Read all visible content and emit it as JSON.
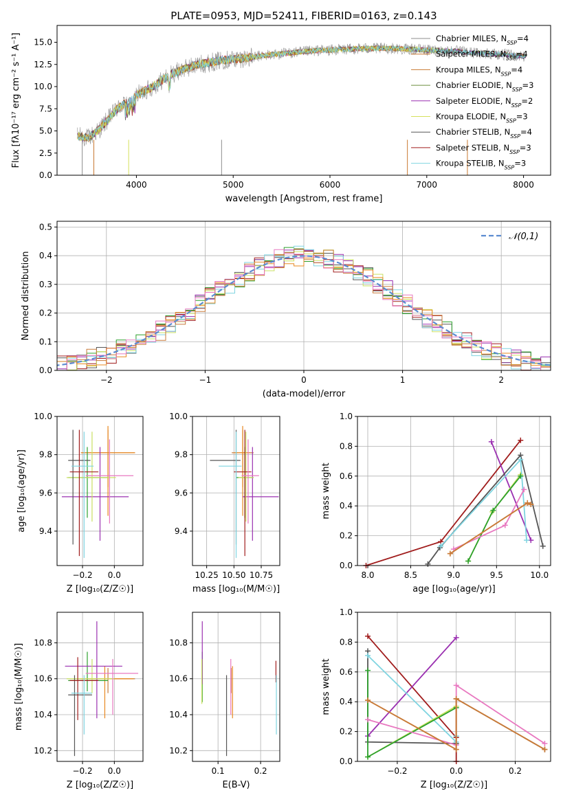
{
  "colors": [
    "#1f77b4",
    "#e88820",
    "#c77a3a",
    "#2ca02c",
    "#9a2fb0",
    "#c9e060",
    "#555555",
    "#a01c1c",
    "#7fd4e0",
    "#e878c0"
  ],
  "spectrum_series_colors": [
    "#8c8c8c",
    "#c87830",
    "#c87830",
    "#6b8e3e",
    "#9a2fb0",
    "#d4e05a",
    "#555555",
    "#a01c1c",
    "#7fd4e0"
  ],
  "chart_data": [
    {
      "id": "spectrum",
      "type": "line",
      "title": "PLATE=0953, MJD=52411, FIBERID=0163, z=0.143",
      "xlabel": "wavelength [Angstrom, rest frame]",
      "ylabel": "Flux [fλ10⁻¹⁷ erg cm⁻² s⁻¹ A⁻¹]",
      "xlim": [
        3180,
        8280
      ],
      "ylim": [
        0,
        16.9
      ],
      "xticks": [
        4000,
        5000,
        6000,
        7000,
        8000
      ],
      "yticks": [
        0.0,
        2.5,
        5.0,
        7.5,
        10.0,
        12.5,
        15.0
      ],
      "legend_position": "right",
      "legend": [
        "Chabrier MILES, N_SSP=4",
        "Salpeter MILES, N_SSP=4",
        "Kroupa MILES, N_SSP=4",
        "Chabrier ELODIE, N_SSP=3",
        "Salpeter ELODIE, N_SSP=2",
        "Kroupa ELODIE, N_SSP=3",
        "Chabrier STELIB, N_SSP=4",
        "Salpeter STELIB, N_SSP=3",
        "Kroupa STELIB, N_SSP=3"
      ],
      "continuum": {
        "x": [
          3400,
          3500,
          3600,
          3700,
          3800,
          3900,
          4000,
          4100,
          4200,
          4300,
          4400,
          4500,
          4600,
          4700,
          4800,
          4900,
          5000,
          5100,
          5200,
          5300,
          5400,
          5500,
          5600,
          5700,
          5800,
          5900,
          6000,
          6100,
          6200,
          6300,
          6400,
          6500,
          6600,
          6700,
          6800,
          6900,
          7000,
          7100,
          7200,
          7300,
          7400,
          7500,
          7600,
          7700,
          7800,
          7900,
          8000
        ],
        "y": [
          4.4,
          4.2,
          5.0,
          6.2,
          7.5,
          8.2,
          9.0,
          9.6,
          10.2,
          11.0,
          11.6,
          12.0,
          12.4,
          12.6,
          12.8,
          13.0,
          13.1,
          13.2,
          13.3,
          13.5,
          13.6,
          13.7,
          13.8,
          13.9,
          14.0,
          14.1,
          14.1,
          14.2,
          14.2,
          14.3,
          14.3,
          14.3,
          14.3,
          14.3,
          14.2,
          14.2,
          14.1,
          14.1,
          14.0,
          14.0,
          13.9,
          13.8,
          13.8,
          13.7,
          13.6,
          13.5,
          13.4
        ]
      }
    },
    {
      "id": "residuals",
      "type": "histogram",
      "xlabel": "(data-model)/error",
      "ylabel": "Normed distribution",
      "xlim": [
        -2.5,
        2.5
      ],
      "ylim": [
        0,
        0.52
      ],
      "xticks": [
        -2,
        -1,
        0,
        1,
        2
      ],
      "yticks": [
        0.0,
        0.1,
        0.2,
        0.3,
        0.4,
        0.5
      ],
      "legend": [
        "𝒩(0,1)"
      ],
      "legend_position": "top-right",
      "bin_width": 0.1,
      "grid": true
    },
    {
      "id": "age-vs-Z",
      "type": "scatter",
      "xlabel": "Z [log₁₀(Z/Z☉)]",
      "ylabel": "age  [log₁₀(age/yr)]",
      "xlim": [
        -0.36,
        0.18
      ],
      "ylim": [
        9.22,
        10.0
      ],
      "xticks": [
        -0.2,
        0.0
      ],
      "yticks": [
        9.4,
        9.6,
        9.8,
        10.0
      ],
      "errorbars": [
        {
          "x": -0.04,
          "y": 9.81,
          "xerr": [
            0.17,
            0.17
          ],
          "yerr": [
            0.18,
            0.12
          ],
          "c": 2
        },
        {
          "x": -0.04,
          "y": 9.81,
          "xerr": [
            0.17,
            0.17
          ],
          "yerr": [
            0.33,
            0.14
          ],
          "c": 1
        },
        {
          "x": -0.17,
          "y": 9.68,
          "xerr": [
            0.12,
            0.13
          ],
          "yerr": [
            0.21,
            0.16
          ],
          "c": 3
        },
        {
          "x": -0.09,
          "y": 9.58,
          "xerr": [
            0.24,
            0.18
          ],
          "yerr": [
            0.23,
            0.26
          ],
          "c": 4
        },
        {
          "x": -0.14,
          "y": 9.68,
          "xerr": [
            0.16,
            0.15
          ],
          "yerr": [
            0.23,
            0.24
          ],
          "c": 5
        },
        {
          "x": -0.26,
          "y": 9.77,
          "xerr": [
            0.03,
            0.11
          ],
          "yerr": [
            0.44,
            0.16
          ],
          "c": 6
        },
        {
          "x": -0.22,
          "y": 9.71,
          "xerr": [
            0.06,
            0.12
          ],
          "yerr": [
            0.44,
            0.22
          ],
          "c": 7
        },
        {
          "x": -0.19,
          "y": 9.74,
          "xerr": [
            0.08,
            0.06
          ],
          "yerr": [
            0.48,
            0.18
          ],
          "c": 8
        },
        {
          "x": -0.03,
          "y": 9.69,
          "xerr": [
            0.15,
            0.15
          ],
          "yerr": [
            0.25,
            0.19
          ],
          "c": 9
        }
      ]
    },
    {
      "id": "age-vs-mass",
      "type": "scatter",
      "xlabel": "mass [log₁₀(M/M☉)]",
      "ylabel": "",
      "xlim": [
        10.12,
        10.92
      ],
      "ylim": [
        9.22,
        10.0
      ],
      "xticks": [
        10.25,
        10.5,
        10.75
      ],
      "yticks": [
        9.4,
        9.6,
        9.8,
        10.0
      ],
      "errorbars": [
        {
          "x": 10.58,
          "y": 9.81,
          "xerr": [
            0.1,
            0.1
          ],
          "yerr": [
            0.18,
            0.12
          ],
          "c": 2
        },
        {
          "x": 10.58,
          "y": 9.81,
          "xerr": [
            0.08,
            0.06
          ],
          "yerr": [
            0.33,
            0.14
          ],
          "c": 1
        },
        {
          "x": 10.6,
          "y": 9.68,
          "xerr": [
            0.08,
            0.08
          ],
          "yerr": [
            0.21,
            0.16
          ],
          "c": 3
        },
        {
          "x": 10.67,
          "y": 9.58,
          "xerr": [
            0.09,
            0.24
          ],
          "yerr": [
            0.23,
            0.26
          ],
          "c": 4
        },
        {
          "x": 10.61,
          "y": 9.68,
          "xerr": [
            0.07,
            0.07
          ],
          "yerr": [
            0.23,
            0.24
          ],
          "c": 5
        },
        {
          "x": 10.52,
          "y": 9.77,
          "xerr": [
            0.24,
            0.04
          ],
          "yerr": [
            0.44,
            0.16
          ],
          "c": 6
        },
        {
          "x": 10.6,
          "y": 9.71,
          "xerr": [
            0.1,
            0.06
          ],
          "yerr": [
            0.44,
            0.22
          ],
          "c": 7
        },
        {
          "x": 10.52,
          "y": 9.74,
          "xerr": [
            0.16,
            0.05
          ],
          "yerr": [
            0.48,
            0.18
          ],
          "c": 8
        },
        {
          "x": 10.63,
          "y": 9.69,
          "xerr": [
            0.06,
            0.1
          ],
          "yerr": [
            0.25,
            0.19
          ],
          "c": 9
        }
      ]
    },
    {
      "id": "weight-vs-age",
      "type": "line",
      "xlabel": "age  [log₁₀(age/yr)]",
      "ylabel": "mass weight",
      "xlim": [
        7.88,
        10.13
      ],
      "ylim": [
        0,
        1.0
      ],
      "xticks": [
        8.0,
        8.5,
        9.0,
        9.5,
        10.0
      ],
      "yticks": [
        0.0,
        0.2,
        0.4,
        0.6,
        0.8,
        1.0
      ],
      "series": [
        {
          "c": 7,
          "x": [
            7.98,
            8.85,
            9.78
          ],
          "y": [
            0.0,
            0.16,
            0.84
          ]
        },
        {
          "c": 4,
          "x": [
            9.44,
            9.9
          ],
          "y": [
            0.83,
            0.17
          ]
        },
        {
          "c": 6,
          "x": [
            8.7,
            8.84,
            9.78,
            10.04
          ],
          "y": [
            0.01,
            0.12,
            0.74,
            0.13
          ]
        },
        {
          "c": 8,
          "x": [
            8.85,
            9.78,
            9.85
          ],
          "y": [
            0.13,
            0.71,
            0.17
          ]
        },
        {
          "c": 5,
          "x": [
            9.17,
            9.45,
            9.78
          ],
          "y": [
            0.03,
            0.36,
            0.61
          ]
        },
        {
          "c": 3,
          "x": [
            9.17,
            9.46,
            9.78
          ],
          "y": [
            0.03,
            0.37,
            0.6
          ]
        },
        {
          "c": 9,
          "x": [
            9.0,
            9.6,
            9.82
          ],
          "y": [
            0.11,
            0.27,
            0.51
          ]
        },
        {
          "c": 1,
          "x": [
            8.96,
            9.86,
            9.9
          ],
          "y": [
            0.08,
            0.42,
            0.41
          ]
        },
        {
          "c": 2,
          "x": [
            8.96,
            9.86,
            9.9
          ],
          "y": [
            0.08,
            0.42,
            0.41
          ]
        }
      ]
    },
    {
      "id": "mass-vs-Z",
      "type": "scatter",
      "xlabel": "Z [log₁₀(Z/Z☉)]",
      "ylabel": "mass [log₁₀(M/M☉)]",
      "xlim": [
        -0.36,
        0.18
      ],
      "ylim": [
        10.14,
        10.97
      ],
      "xticks": [
        -0.2,
        0.0
      ],
      "yticks": [
        10.2,
        10.4,
        10.6,
        10.8
      ],
      "errorbars": [
        {
          "x": -0.04,
          "y": 10.6,
          "xerr": [
            0.17,
            0.17
          ],
          "yerr": [
            0.08,
            0.06
          ],
          "c": 2
        },
        {
          "x": -0.06,
          "y": 10.6,
          "xerr": [
            0.16,
            0.18
          ],
          "yerr": [
            0.22,
            0.07
          ],
          "c": 1
        },
        {
          "x": -0.17,
          "y": 10.59,
          "xerr": [
            0.12,
            0.13
          ],
          "yerr": [
            0.06,
            0.16
          ],
          "c": 3
        },
        {
          "x": -0.11,
          "y": 10.67,
          "xerr": [
            0.2,
            0.16
          ],
          "yerr": [
            0.29,
            0.25
          ],
          "c": 4
        },
        {
          "x": -0.14,
          "y": 10.6,
          "xerr": [
            0.16,
            0.14
          ],
          "yerr": [
            0.08,
            0.11
          ],
          "c": 5
        },
        {
          "x": -0.25,
          "y": 10.51,
          "xerr": [
            0.04,
            0.11
          ],
          "yerr": [
            0.34,
            0.11
          ],
          "c": 6
        },
        {
          "x": -0.23,
          "y": 10.59,
          "xerr": [
            0.05,
            0.13
          ],
          "yerr": [
            0.22,
            0.13
          ],
          "c": 7
        },
        {
          "x": -0.19,
          "y": 10.52,
          "xerr": [
            0.08,
            0.05
          ],
          "yerr": [
            0.23,
            0.1
          ],
          "c": 8
        },
        {
          "x": -0.01,
          "y": 10.63,
          "xerr": [
            0.17,
            0.16
          ],
          "yerr": [
            0.23,
            0.08
          ],
          "c": 9
        }
      ]
    },
    {
      "id": "mass-vs-EBV",
      "type": "scatter",
      "xlabel": "E(B-V)",
      "ylabel": "",
      "xlim": [
        0.04,
        0.245
      ],
      "ylim": [
        10.14,
        10.97
      ],
      "xticks": [
        0.1,
        0.2
      ],
      "yticks": [
        10.2,
        10.4,
        10.6,
        10.8
      ],
      "errorbars": [
        {
          "x": 0.131,
          "y": 10.6,
          "xerr": [
            0,
            0
          ],
          "yerr": [
            0.08,
            0.06
          ],
          "c": 2
        },
        {
          "x": 0.134,
          "y": 10.6,
          "xerr": [
            0,
            0
          ],
          "yerr": [
            0.22,
            0.07
          ],
          "c": 1
        },
        {
          "x": 0.063,
          "y": 10.59,
          "xerr": [
            0,
            0
          ],
          "yerr": [
            0.12,
            0.16
          ],
          "c": 3
        },
        {
          "x": 0.063,
          "y": 10.67,
          "xerr": [
            0,
            0
          ],
          "yerr": [
            0.1,
            0.25
          ],
          "c": 4
        },
        {
          "x": 0.062,
          "y": 10.6,
          "xerr": [
            0,
            0
          ],
          "yerr": [
            0.14,
            0.11
          ],
          "c": 5
        },
        {
          "x": 0.12,
          "y": 10.51,
          "xerr": [
            0,
            0
          ],
          "yerr": [
            0.34,
            0.11
          ],
          "c": 6
        },
        {
          "x": 0.236,
          "y": 10.63,
          "xerr": [
            0,
            0
          ],
          "yerr": [
            0.05,
            0.07
          ],
          "c": 7
        },
        {
          "x": 0.237,
          "y": 10.52,
          "xerr": [
            0,
            0
          ],
          "yerr": [
            0.23,
            0.1
          ],
          "c": 8
        },
        {
          "x": 0.13,
          "y": 10.63,
          "xerr": [
            0,
            0
          ],
          "yerr": [
            0.23,
            0.08
          ],
          "c": 9
        }
      ]
    },
    {
      "id": "weight-vs-Z",
      "type": "line",
      "xlabel": "Z [log₁₀(Z/Z☉)]",
      "ylabel": "mass weight",
      "xlim": [
        -0.335,
        0.32
      ],
      "ylim": [
        0,
        1.0
      ],
      "xticks": [
        -0.2,
        0.0,
        0.2
      ],
      "yticks": [
        0.0,
        0.2,
        0.4,
        0.6,
        0.8,
        1.0
      ],
      "series": [
        {
          "c": 7,
          "x": [
            -0.3,
            0.0,
            0.0
          ],
          "y": [
            0.84,
            0.16,
            0.0
          ]
        },
        {
          "c": 4,
          "x": [
            -0.3,
            0.0
          ],
          "y": [
            0.17,
            0.83
          ]
        },
        {
          "c": 6,
          "x": [
            -0.3,
            -0.3,
            0.0,
            0.0,
            0.3
          ],
          "y": [
            0.74,
            0.13,
            0.12,
            0.42,
            0.08
          ]
        },
        {
          "c": 8,
          "x": [
            -0.3,
            0.0,
            0.0
          ],
          "y": [
            0.71,
            0.13,
            0.17
          ]
        },
        {
          "c": 5,
          "x": [
            -0.3,
            0.0
          ],
          "y": [
            0.03,
            0.37
          ]
        },
        {
          "c": 3,
          "x": [
            -0.3,
            -0.3,
            0.0
          ],
          "y": [
            0.61,
            0.03,
            0.36
          ]
        },
        {
          "c": 9,
          "x": [
            -0.3,
            0.0,
            0.0,
            0.3
          ],
          "y": [
            0.28,
            0.11,
            0.51,
            0.12
          ]
        },
        {
          "c": 1,
          "x": [
            -0.3,
            0.0,
            0.0,
            0.3
          ],
          "y": [
            0.41,
            0.08,
            0.42,
            0.08
          ]
        },
        {
          "c": 2,
          "x": [
            -0.3,
            0.0,
            0.0,
            0.3
          ],
          "y": [
            0.41,
            0.08,
            0.42,
            0.08
          ]
        }
      ]
    }
  ]
}
